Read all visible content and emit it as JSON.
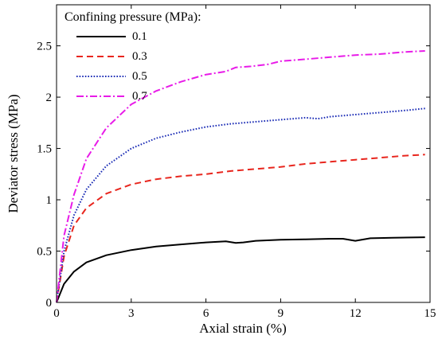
{
  "chart_data": {
    "type": "line",
    "title": "",
    "xlabel": "Axial strain (%)",
    "ylabel": "Deviator stress (MPa)",
    "xlim": [
      0,
      15
    ],
    "ylim": [
      0,
      2.9
    ],
    "xticks": [
      0,
      3,
      6,
      9,
      12,
      15
    ],
    "yticks": [
      0,
      0.5,
      1,
      1.5,
      2,
      2.5
    ],
    "xtick_labels": [
      "0",
      "3",
      "6",
      "9",
      "12",
      "15"
    ],
    "ytick_labels": [
      "0",
      "0.5",
      "1",
      "1.5",
      "2",
      "2.5"
    ],
    "grid": false,
    "legend": {
      "title": "Confining pressure (MPa):",
      "placement": "top-left"
    },
    "series": [
      {
        "name": "0.1",
        "color": "#000000",
        "style": "solid",
        "x": [
          0,
          0.3,
          0.7,
          1.2,
          2,
          3,
          4,
          5,
          6,
          6.8,
          7.2,
          7.5,
          8,
          9,
          10,
          11,
          11.5,
          12,
          12.6,
          13.5,
          14.8
        ],
        "y": [
          0,
          0.18,
          0.3,
          0.39,
          0.46,
          0.51,
          0.545,
          0.565,
          0.585,
          0.595,
          0.58,
          0.585,
          0.6,
          0.61,
          0.615,
          0.62,
          0.62,
          0.6,
          0.625,
          0.63,
          0.635
        ]
      },
      {
        "name": "0.3",
        "color": "#e8261e",
        "style": "dashed",
        "x": [
          0,
          0.3,
          0.7,
          1.2,
          2,
          3,
          4,
          5,
          6,
          7,
          8,
          9,
          10,
          11,
          12,
          13,
          14,
          14.8
        ],
        "y": [
          0,
          0.45,
          0.75,
          0.92,
          1.06,
          1.15,
          1.2,
          1.23,
          1.25,
          1.28,
          1.3,
          1.32,
          1.35,
          1.37,
          1.39,
          1.41,
          1.43,
          1.44
        ]
      },
      {
        "name": "0.5",
        "color": "#1a2bb5",
        "style": "dotted",
        "x": [
          0,
          0.3,
          0.7,
          1.2,
          2,
          3,
          4,
          5,
          6,
          7,
          8,
          9,
          10,
          10.5,
          11,
          12,
          13,
          14,
          14.8
        ],
        "y": [
          0,
          0.5,
          0.85,
          1.1,
          1.33,
          1.5,
          1.6,
          1.66,
          1.71,
          1.74,
          1.76,
          1.78,
          1.8,
          1.79,
          1.81,
          1.83,
          1.85,
          1.87,
          1.89
        ]
      },
      {
        "name": "0.7",
        "color": "#e81be8",
        "style": "dashdot",
        "x": [
          0,
          0.3,
          0.7,
          1.2,
          2,
          3,
          4,
          5,
          6,
          6.8,
          7.2,
          7.8,
          8.5,
          9,
          10,
          11,
          12,
          13,
          14,
          14.8
        ],
        "y": [
          0,
          0.65,
          1.05,
          1.4,
          1.7,
          1.93,
          2.06,
          2.15,
          2.22,
          2.25,
          2.29,
          2.3,
          2.32,
          2.35,
          2.37,
          2.39,
          2.41,
          2.42,
          2.44,
          2.45
        ]
      }
    ]
  }
}
